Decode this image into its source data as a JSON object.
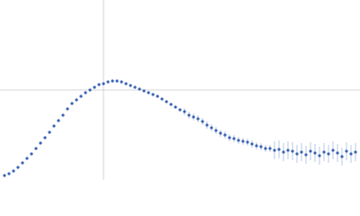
{
  "chart_data": {
    "type": "scatter",
    "x": [
      5,
      10,
      15,
      20,
      25,
      30,
      35,
      40,
      45,
      50,
      55,
      60,
      65,
      70,
      75,
      80,
      85,
      90,
      95,
      100,
      105,
      110,
      115,
      120,
      125,
      130,
      135,
      140,
      145,
      150,
      155,
      160,
      165,
      170,
      175,
      180,
      185,
      190,
      195,
      200,
      205,
      210,
      215,
      220,
      225,
      230,
      235,
      240,
      245,
      250,
      255,
      260,
      265,
      270,
      275,
      280,
      285,
      290,
      295,
      300,
      305,
      310,
      315,
      320,
      325,
      330,
      335,
      340,
      345,
      350,
      355,
      360,
      365,
      370,
      375,
      380,
      385,
      390,
      395
    ],
    "series": [
      {
        "color": "#3c64b4",
        "error_color": "#a9bce0",
        "values": [
          5,
          7,
          10,
          14,
          19,
          24,
          29,
          35,
          41,
          47,
          53,
          60,
          66,
          72,
          79,
          85,
          89,
          93,
          97,
          100,
          103,
          106,
          107,
          109,
          110,
          110,
          109,
          107,
          105,
          103,
          101,
          99,
          97,
          95,
          93,
          90,
          87,
          84,
          81,
          78,
          76,
          72,
          70,
          68,
          65,
          61,
          58,
          55,
          52,
          50,
          47,
          46,
          44,
          43,
          42,
          40,
          38,
          37,
          35,
          35,
          33,
          34,
          31,
          33,
          32,
          29,
          31,
          28,
          32,
          30,
          27,
          31,
          29,
          33,
          30,
          26,
          32,
          29,
          31
        ],
        "errors": [
          0.5,
          0.5,
          0.5,
          0.5,
          0.5,
          0.5,
          0.5,
          0.5,
          0.5,
          0.5,
          0.5,
          0.5,
          0.5,
          0.5,
          0.5,
          0.5,
          0.5,
          0.5,
          0.5,
          0.5,
          1.5,
          1.5,
          1.5,
          1.5,
          1.5,
          1.5,
          1.5,
          1.5,
          1.5,
          1.5,
          1.5,
          1.5,
          1.5,
          1.5,
          1.5,
          1.5,
          1.5,
          1.5,
          1.5,
          1.5,
          4,
          4,
          4,
          4,
          4,
          4,
          4,
          4,
          4,
          4,
          4,
          4,
          4,
          4,
          4,
          4,
          4,
          4,
          4,
          4,
          10,
          10,
          10,
          10,
          10,
          10,
          10,
          10,
          10,
          10,
          10,
          10,
          10,
          10,
          10,
          10,
          10,
          10,
          10
        ]
      }
    ],
    "xlim": [
      0,
      400
    ],
    "ylim": [
      0,
      200
    ],
    "xticks": [
      115
    ],
    "yticks": [
      100
    ],
    "grid": true
  }
}
